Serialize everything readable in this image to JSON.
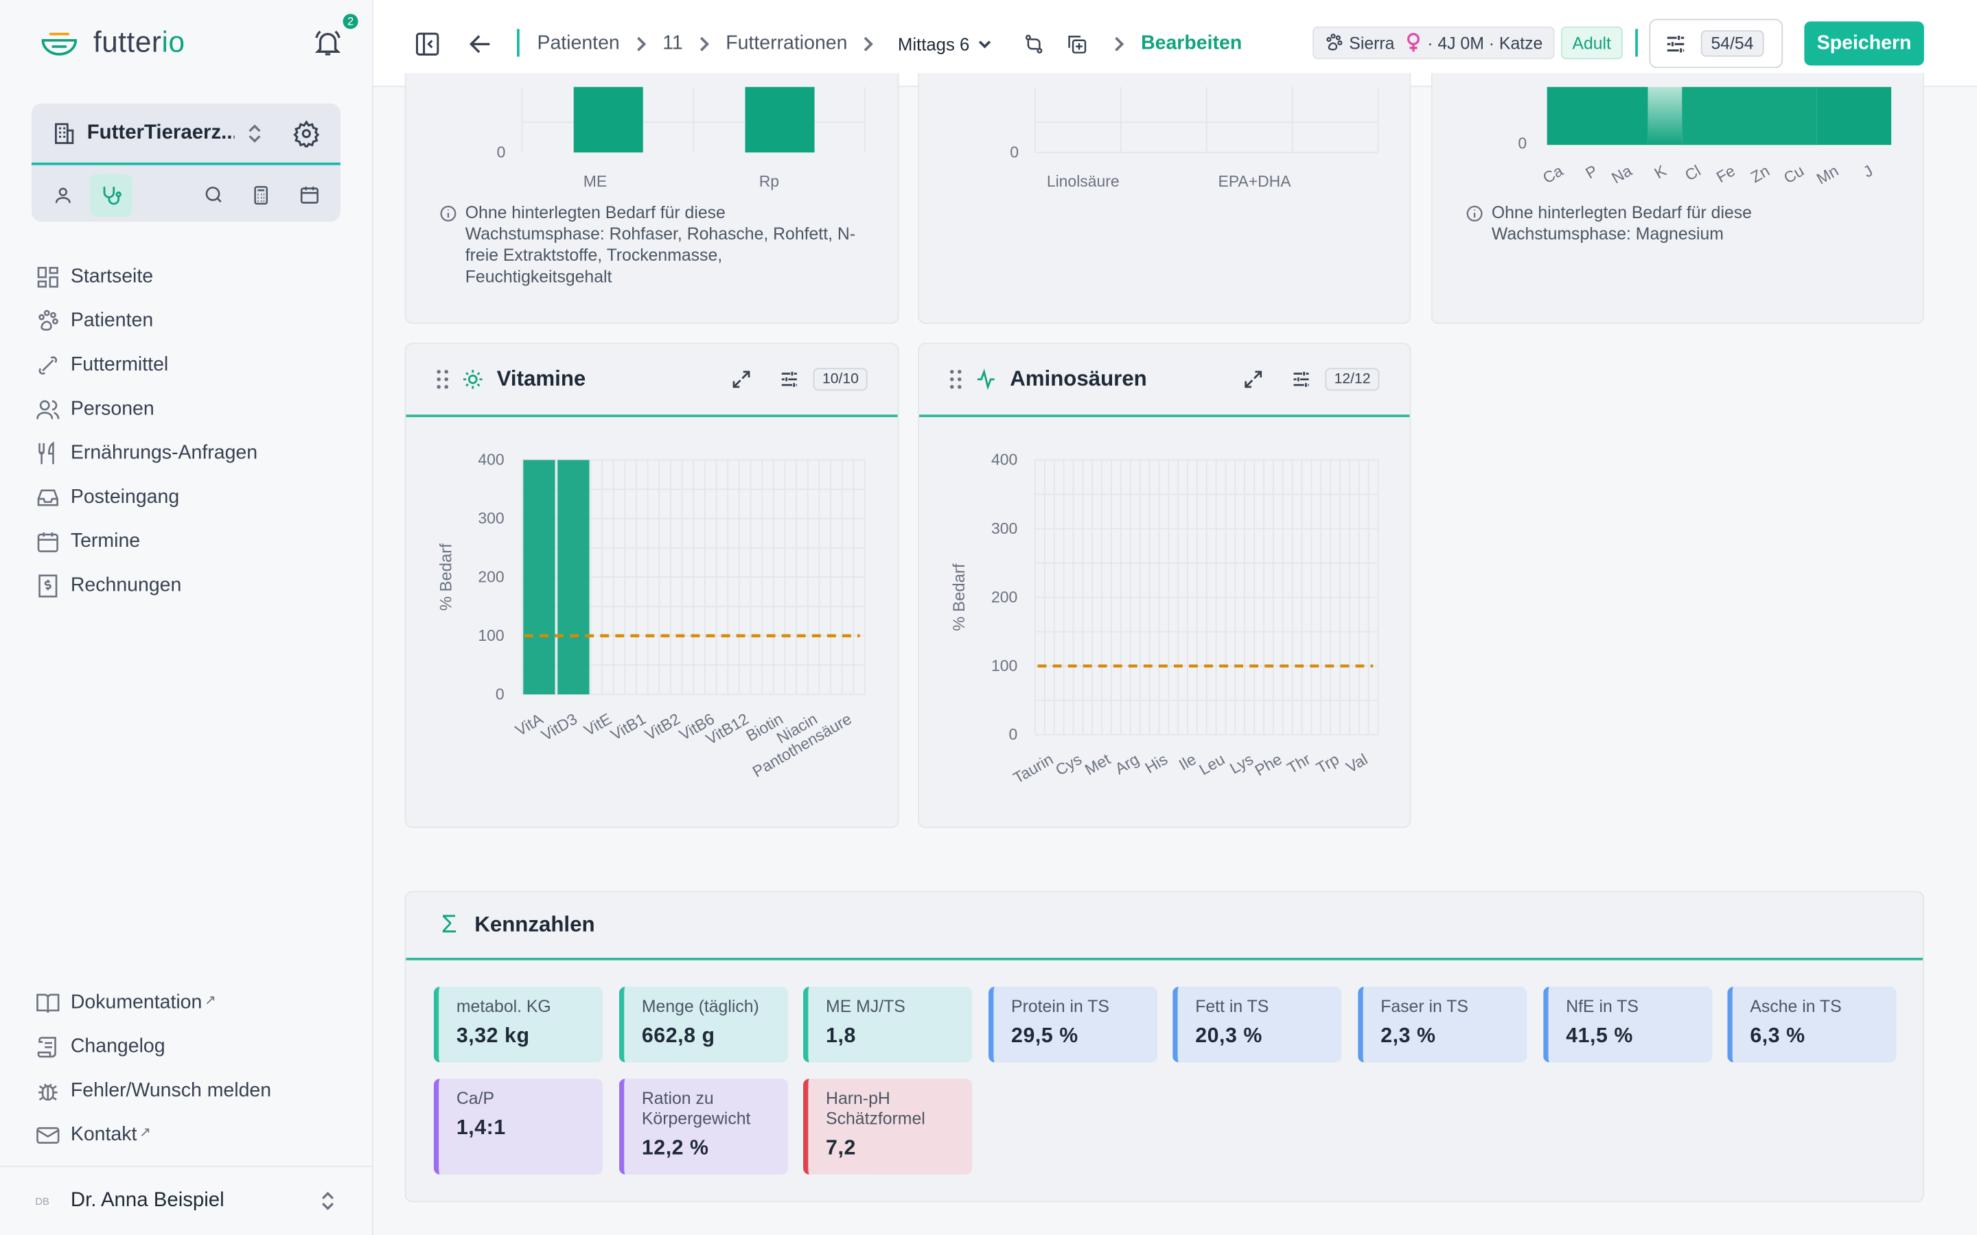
{
  "app": {
    "logo_text_1": "futter",
    "logo_text_2": "io",
    "notif_count": "2"
  },
  "practice": {
    "name": "FutterTieraerz..."
  },
  "nav": {
    "items": [
      {
        "label": "Startseite",
        "icon": "dashboard-icon"
      },
      {
        "label": "Patienten",
        "icon": "paw-icon"
      },
      {
        "label": "Futtermittel",
        "icon": "bone-icon"
      },
      {
        "label": "Personen",
        "icon": "users-icon"
      },
      {
        "label": "Ernährungs-Anfragen",
        "icon": "fork-knife-icon"
      },
      {
        "label": "Posteingang",
        "icon": "inbox-icon"
      },
      {
        "label": "Termine",
        "icon": "calendar-icon"
      },
      {
        "label": "Rechnungen",
        "icon": "invoice-icon"
      }
    ],
    "bottom": [
      {
        "label": "Dokumentation",
        "ext": "↗"
      },
      {
        "label": "Changelog",
        "ext": ""
      },
      {
        "label": "Fehler/Wunsch melden",
        "ext": ""
      },
      {
        "label": "Kontakt",
        "ext": "↗"
      }
    ]
  },
  "user": {
    "initials": "DB",
    "name": "Dr. Anna Beispiel"
  },
  "topbar": {
    "crumbs": [
      "Patienten",
      "11",
      "Futterrationen"
    ],
    "ration": "Mittags 6",
    "active_crumb": "Bearbeiten",
    "pet_name": "Sierra",
    "pet_info": "· 4J 0M · Katze",
    "stage": "Adult",
    "counter": "54/54",
    "save_label": "Speichern"
  },
  "top_cards": {
    "macro": {
      "zero": "0",
      "cats": [
        "ME",
        "Rp"
      ],
      "note": "Ohne hinterlegten Bedarf für diese Wachstumsphase: Rohfaser, Rohasche, Rohfett, N-freie Extraktstoffe, Trockenmasse, Feuchtigkeitsgehalt"
    },
    "fat": {
      "zero": "0",
      "cats": [
        "Linolsäure",
        "EPA+DHA"
      ]
    },
    "minerals": {
      "zero": "0",
      "cats": [
        "Ca",
        "P",
        "Na",
        "K",
        "Cl",
        "Fe",
        "Zn",
        "Cu",
        "Mn",
        "J"
      ],
      "note": "Ohne hinterlegten Bedarf für diese Wachstumsphase: Magnesium"
    }
  },
  "vitamine": {
    "title": "Vitamine",
    "counter": "10/10",
    "ylabel": "% Bedarf",
    "ticks": [
      "0",
      "100",
      "200",
      "300",
      "400"
    ],
    "categories": [
      "VitA",
      "VitD3",
      "VitE",
      "VitB1",
      "VitB2",
      "VitB6",
      "VitB12",
      "Biotin",
      "Niacin",
      "Pantothensäure"
    ]
  },
  "aminos": {
    "title": "Aminosäuren",
    "counter": "12/12",
    "ylabel": "% Bedarf",
    "ticks": [
      "0",
      "100",
      "200",
      "300",
      "400"
    ],
    "categories": [
      "Taurin",
      "Cys",
      "Met",
      "Arg",
      "His",
      "Ile",
      "Leu",
      "Lys",
      "Phe",
      "Thr",
      "Trp",
      "Val"
    ]
  },
  "chart_data": [
    {
      "type": "bar",
      "title": "Vitamine",
      "ylabel": "% Bedarf",
      "ylim": [
        0,
        400
      ],
      "categories": [
        "VitA",
        "VitD3",
        "VitE",
        "VitB1",
        "VitB2",
        "VitB6",
        "VitB12",
        "Biotin",
        "Niacin",
        "Pantothensäure"
      ],
      "values": [
        400,
        400,
        0,
        0,
        0,
        0,
        0,
        0,
        0,
        0
      ],
      "reference_line": 100,
      "bar_color": "#10a37f",
      "ref_color": "#d88a06"
    },
    {
      "type": "bar",
      "title": "Aminosäuren",
      "ylabel": "% Bedarf",
      "ylim": [
        0,
        400
      ],
      "categories": [
        "Taurin",
        "Cys",
        "Met",
        "Arg",
        "His",
        "Ile",
        "Leu",
        "Lys",
        "Phe",
        "Thr",
        "Trp",
        "Val"
      ],
      "values": [
        0,
        0,
        0,
        0,
        0,
        0,
        0,
        0,
        0,
        0,
        0,
        0
      ],
      "reference_line": 100,
      "ref_color": "#d88a06"
    }
  ],
  "kennzahlen": {
    "title": "Kennzahlen",
    "items": [
      {
        "label": "metabol. KG",
        "value": "3,32 kg",
        "color": "green"
      },
      {
        "label": "Menge (täglich)",
        "value": "662,8 g",
        "color": "green"
      },
      {
        "label": "ME MJ/TS",
        "value": "1,8",
        "color": "green"
      },
      {
        "label": "Protein in TS",
        "value": "29,5 %",
        "color": "blue"
      },
      {
        "label": "Fett in TS",
        "value": "20,3 %",
        "color": "blue"
      },
      {
        "label": "Faser in TS",
        "value": "2,3 %",
        "color": "blue"
      },
      {
        "label": "NfE in TS",
        "value": "41,5 %",
        "color": "blue"
      },
      {
        "label": "Asche in TS",
        "value": "6,3 %",
        "color": "blue"
      },
      {
        "label": "Ca/P",
        "value": "1,4:1",
        "color": "purple"
      },
      {
        "label": "Ration zu Körpergewicht",
        "value": "12,2 %",
        "color": "purple"
      },
      {
        "label": "Harn-pH Schätzformel",
        "value": "7,2",
        "color": "red"
      }
    ]
  }
}
